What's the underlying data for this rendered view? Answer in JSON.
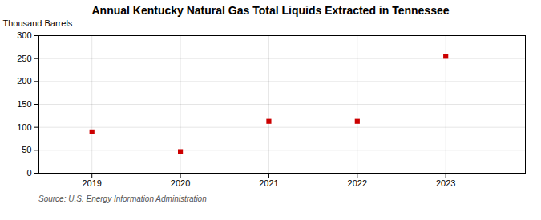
{
  "chart_data": {
    "type": "scatter",
    "title": "Annual Kentucky Natural Gas Total Liquids Extracted in Tennessee",
    "ylabel": "Thousand Barrels",
    "annotations": [
      "Source: U.S. Energy Information Administration"
    ],
    "x": [
      2019,
      2020,
      2021,
      2022,
      2023
    ],
    "values": [
      90,
      47,
      113,
      113,
      255
    ],
    "color": "#cc0000",
    "marker": "square",
    "xlim": [
      2018.4,
      2023.9
    ],
    "xticks": [
      2019,
      2020,
      2021,
      2022,
      2023
    ],
    "ylim": [
      0,
      300
    ],
    "yticks": [
      0,
      50,
      100,
      150,
      200,
      250,
      300
    ],
    "grid": true
  }
}
